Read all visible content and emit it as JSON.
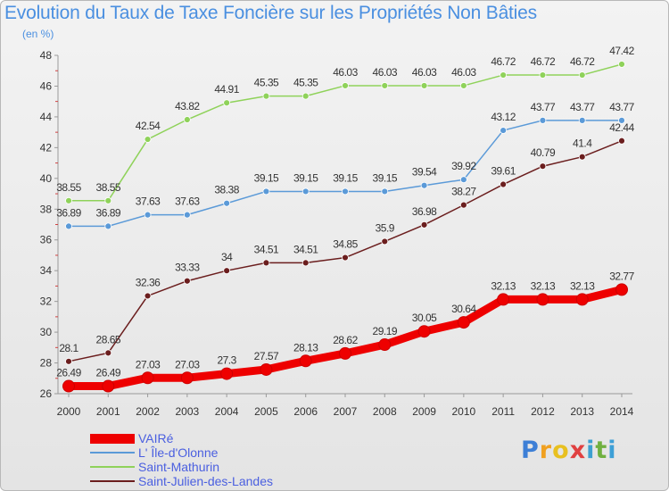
{
  "title": "Evolution du Taux de Taxe Foncière sur les Propriétés Non Bâties",
  "unit_label": "(en %)",
  "brand": {
    "letters": [
      "P",
      "r",
      "o",
      "x",
      "i",
      "t",
      "i"
    ],
    "colors": [
      "#3d7fd6",
      "#f0a020",
      "#e8c020",
      "#e04040",
      "#3da0d0",
      "#70b040",
      "#3d9fd6"
    ]
  },
  "chart_data": {
    "type": "line",
    "title": "Evolution du Taux de Taxe Foncière sur les Propriétés Non Bâties",
    "ylabel": "(en %)",
    "x": [
      "2000",
      "2001",
      "2002",
      "2003",
      "2004",
      "2005",
      "2006",
      "2007",
      "2008",
      "2009",
      "2010",
      "2011",
      "2012",
      "2013",
      "2014"
    ],
    "ylim": [
      26,
      48
    ],
    "yticks": [
      "26",
      "28",
      "30",
      "32",
      "34",
      "36",
      "38",
      "40",
      "42",
      "44",
      "46",
      "48"
    ],
    "grid": false,
    "legend_position": "bottom-left",
    "series": [
      {
        "name": "VAIRé",
        "color": "#ee0000",
        "values": [
          26.49,
          26.49,
          27.03,
          27.03,
          27.3,
          27.57,
          28.13,
          28.62,
          29.19,
          30.05,
          30.64,
          32.13,
          32.13,
          32.13,
          32.77
        ],
        "labels": [
          "26.49",
          "26.49",
          "27.03",
          "27.03",
          "27.3",
          "27.57",
          "28.13",
          "28.62",
          "29.19",
          "30.05",
          "30.64",
          "32.13",
          "32.13",
          "32.13",
          "32.77"
        ]
      },
      {
        "name": "L' Île-d'Olonne",
        "color": "#5b9ad8",
        "values": [
          36.89,
          36.89,
          37.63,
          37.63,
          38.38,
          39.15,
          39.15,
          39.15,
          39.15,
          39.54,
          39.92,
          43.12,
          43.77,
          43.77,
          43.77
        ],
        "labels": [
          "36.89",
          "36.89",
          "37.63",
          "37.63",
          "38.38",
          "39.15",
          "39.15",
          "39.15",
          "39.15",
          "39.54",
          "39.92",
          "43.12",
          "43.77",
          "43.77",
          "43.77"
        ]
      },
      {
        "name": "Saint-Mathurin",
        "color": "#8fd25a",
        "values": [
          38.55,
          38.55,
          42.54,
          43.82,
          44.91,
          45.35,
          45.35,
          46.03,
          46.03,
          46.03,
          46.03,
          46.72,
          46.72,
          46.72,
          47.42
        ],
        "labels": [
          "38.55",
          "38.55",
          "42.54",
          "43.82",
          "44.91",
          "45.35",
          "45.35",
          "46.03",
          "46.03",
          "46.03",
          "46.03",
          "46.72",
          "46.72",
          "46.72",
          "47.42"
        ]
      },
      {
        "name": "Saint-Julien-des-Landes",
        "color": "#6b1e1e",
        "values": [
          28.1,
          28.65,
          32.36,
          33.33,
          34.0,
          34.51,
          34.51,
          34.85,
          35.9,
          36.98,
          38.27,
          39.61,
          40.79,
          41.4,
          42.44
        ],
        "labels": [
          "28.1",
          "28.65",
          "32.36",
          "33.33",
          "34",
          "34.51",
          "34.51",
          "34.85",
          "35.9",
          "36.98",
          "38.27",
          "39.61",
          "40.79",
          "41.4",
          "42.44"
        ]
      }
    ]
  }
}
